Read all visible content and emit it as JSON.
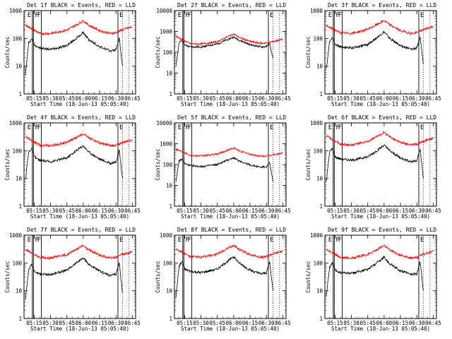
{
  "chart_data": [
    {
      "type": "line",
      "title": "Det 1f BLACK = Events, RED = LLD",
      "xlabel": "Start Time (18-Jun-13 05:05:40)",
      "ylabel": "Counts/sec",
      "y_scale": "log",
      "ylim": [
        1,
        1000
      ],
      "ytick_labels": [
        "1",
        "10",
        "100",
        "1000"
      ],
      "xtick_labels": [
        "05:15",
        "05:30",
        "05:45",
        "06:00",
        "06:15",
        "06:30",
        "06:45"
      ],
      "markers": [
        "E",
        "F",
        "F",
        "E"
      ],
      "series": [
        {
          "color": "#000000",
          "x": [
            "05:07",
            "05:10",
            "05:13",
            "05:15",
            "05:20",
            "05:30",
            "05:45",
            "05:55",
            "06:00",
            "06:05",
            "06:15",
            "06:25",
            "06:30",
            "06:33",
            "06:36"
          ],
          "values": [
            5,
            70,
            100,
            60,
            45,
            40,
            55,
            110,
            160,
            90,
            50,
            35,
            40,
            100,
            10
          ]
        },
        {
          "color": "#ff0000",
          "x": [
            "05:07",
            "05:15",
            "05:20",
            "05:30",
            "05:45",
            "05:55",
            "06:00",
            "06:05",
            "06:15",
            "06:25",
            "06:30",
            "06:35",
            "06:45"
          ],
          "values": [
            300,
            200,
            150,
            150,
            200,
            330,
            430,
            300,
            190,
            150,
            160,
            200,
            260
          ]
        }
      ]
    },
    {
      "type": "line",
      "title": "Det 2f BLACK = Events, RED = LLD",
      "xlabel": "Start Time (18-Jun-13 05:05:40)",
      "ylabel": "Counts/sec",
      "y_scale": "log",
      "ylim": [
        1,
        10000
      ],
      "ytick_labels": [
        "1",
        "10",
        "100",
        "1000",
        "10000"
      ],
      "xtick_labels": [
        "05:15",
        "05:30",
        "05:45",
        "06:00",
        "06:15",
        "06:30",
        "06:45"
      ],
      "markers": [
        "E",
        "F",
        "F",
        "E"
      ],
      "series": [
        {
          "color": "#000000",
          "x": [
            "05:07",
            "05:10",
            "05:13",
            "05:15",
            "05:20",
            "05:30",
            "05:45",
            "05:55",
            "06:00",
            "06:05",
            "06:15",
            "06:25",
            "06:30",
            "06:33",
            "06:36"
          ],
          "values": [
            20,
            300,
            380,
            220,
            180,
            180,
            250,
            420,
            530,
            380,
            230,
            180,
            190,
            250,
            50
          ]
        },
        {
          "color": "#ff0000",
          "x": [
            "05:07",
            "05:15",
            "05:20",
            "05:30",
            "05:45",
            "05:55",
            "06:00",
            "06:05",
            "06:15",
            "06:25",
            "06:30",
            "06:35",
            "06:45"
          ],
          "values": [
            600,
            350,
            260,
            250,
            320,
            580,
            750,
            520,
            330,
            270,
            280,
            320,
            420
          ]
        }
      ]
    },
    {
      "type": "line",
      "title": "Det 3f BLACK = Events, RED = LLD",
      "xlabel": "Start Time (18-Jun-13 05:05:40)",
      "ylabel": "Counts/sec",
      "y_scale": "log",
      "ylim": [
        1,
        1000
      ],
      "ytick_labels": [
        "1",
        "10",
        "100",
        "1000"
      ],
      "xtick_labels": [
        "05:15",
        "05:30",
        "05:45",
        "06:00",
        "06:15",
        "06:30",
        "06:45"
      ],
      "markers": [
        "E",
        "F",
        "F",
        "E"
      ],
      "series": [
        {
          "color": "#000000",
          "x": [
            "05:07",
            "05:10",
            "05:13",
            "05:15",
            "05:20",
            "05:30",
            "05:45",
            "05:55",
            "06:00",
            "06:05",
            "06:15",
            "06:25",
            "06:30",
            "06:33",
            "06:36"
          ],
          "values": [
            8,
            80,
            110,
            60,
            50,
            45,
            60,
            120,
            170,
            100,
            55,
            40,
            45,
            110,
            12
          ]
        },
        {
          "color": "#ff0000",
          "x": [
            "05:07",
            "05:15",
            "05:20",
            "05:30",
            "05:45",
            "05:55",
            "06:00",
            "06:05",
            "06:15",
            "06:25",
            "06:30",
            "06:35",
            "06:45"
          ],
          "values": [
            280,
            200,
            160,
            150,
            210,
            340,
            440,
            310,
            190,
            150,
            160,
            200,
            270
          ]
        }
      ]
    },
    {
      "type": "line",
      "title": "Det 4f BLACK = Events, RED = LLD",
      "xlabel": "Start Time (18-Jun-13 05:05:40)",
      "ylabel": "Counts/sec",
      "y_scale": "log",
      "ylim": [
        1,
        1000
      ],
      "ytick_labels": [
        "1",
        "10",
        "100",
        "1000"
      ],
      "xtick_labels": [
        "05:15",
        "05:30",
        "05:45",
        "06:00",
        "06:15",
        "06:30",
        "06:45"
      ],
      "markers": [
        "E",
        "F",
        "F",
        "E"
      ],
      "series": [
        {
          "color": "#000000",
          "x": [
            "05:07",
            "05:10",
            "05:13",
            "05:15",
            "05:20",
            "05:30",
            "05:45",
            "05:55",
            "06:00",
            "06:05",
            "06:15",
            "06:25",
            "06:30",
            "06:33",
            "06:36"
          ],
          "values": [
            10,
            90,
            120,
            60,
            45,
            40,
            55,
            110,
            150,
            90,
            50,
            35,
            40,
            100,
            10
          ]
        },
        {
          "color": "#ff0000",
          "x": [
            "05:07",
            "05:15",
            "05:20",
            "05:30",
            "05:45",
            "05:55",
            "06:00",
            "06:05",
            "06:15",
            "06:25",
            "06:30",
            "06:35",
            "06:45"
          ],
          "values": [
            320,
            210,
            160,
            150,
            200,
            320,
            420,
            300,
            190,
            150,
            160,
            190,
            250
          ]
        }
      ]
    },
    {
      "type": "line",
      "title": "Det 5f BLACK = Events, RED = LLD",
      "xlabel": "Start Time (18-Jun-13 05:05:40)",
      "ylabel": "Counts/sec",
      "y_scale": "log",
      "ylim": [
        1,
        10000
      ],
      "ytick_labels": [
        "1",
        "10",
        "100",
        "1000",
        "10000"
      ],
      "xtick_labels": [
        "05:15",
        "05:30",
        "05:45",
        "06:00",
        "06:15",
        "06:30",
        "06:45"
      ],
      "markers": [
        "E",
        "F",
        "F",
        "E"
      ],
      "series": [
        {
          "color": "#000000",
          "x": [
            "05:07",
            "05:10",
            "05:13",
            "05:15",
            "05:20",
            "05:30",
            "05:45",
            "05:55",
            "06:00",
            "06:05",
            "06:15",
            "06:25",
            "06:30",
            "06:33",
            "06:36"
          ],
          "values": [
            15,
            150,
            180,
            110,
            90,
            80,
            100,
            170,
            210,
            150,
            95,
            75,
            80,
            120,
            15
          ]
        },
        {
          "color": "#ff0000",
          "x": [
            "05:07",
            "05:15",
            "05:20",
            "05:30",
            "05:45",
            "05:55",
            "06:00",
            "06:05",
            "06:15",
            "06:25",
            "06:30",
            "06:35",
            "06:45"
          ],
          "values": [
            550,
            380,
            280,
            260,
            320,
            500,
            620,
            460,
            310,
            250,
            260,
            290,
            350
          ]
        }
      ]
    },
    {
      "type": "line",
      "title": "Det 6f BLACK = Events, RED = LLD",
      "xlabel": "Start Time (18-Jun-13 05:05:40)",
      "ylabel": "Counts/sec",
      "y_scale": "log",
      "ylim": [
        1,
        1000
      ],
      "ytick_labels": [
        "1",
        "10",
        "100",
        "1000"
      ],
      "xtick_labels": [
        "05:15",
        "05:30",
        "05:45",
        "06:00",
        "06:15",
        "06:30",
        "06:45"
      ],
      "markers": [
        "E",
        "F",
        "F",
        "E"
      ],
      "series": [
        {
          "color": "#000000",
          "x": [
            "05:07",
            "05:10",
            "05:13",
            "05:15",
            "05:20",
            "05:30",
            "05:45",
            "05:55",
            "06:00",
            "06:05",
            "06:15",
            "06:25",
            "06:30",
            "06:33",
            "06:36"
          ],
          "values": [
            8,
            90,
            120,
            60,
            50,
            45,
            60,
            110,
            160,
            100,
            55,
            40,
            45,
            110,
            10
          ]
        },
        {
          "color": "#ff0000",
          "x": [
            "05:07",
            "05:15",
            "05:20",
            "05:30",
            "05:45",
            "05:55",
            "06:00",
            "06:05",
            "06:15",
            "06:25",
            "06:30",
            "06:35",
            "06:45"
          ],
          "values": [
            350,
            220,
            170,
            160,
            210,
            350,
            460,
            320,
            200,
            160,
            170,
            210,
            280
          ]
        }
      ]
    },
    {
      "type": "line",
      "title": "Det 7f BLACK = Events, RED = LLD",
      "xlabel": "Start Time (18-Jun-13 05:05:40)",
      "ylabel": "Counts/sec",
      "y_scale": "log",
      "ylim": [
        1,
        1000
      ],
      "ytick_labels": [
        "1",
        "10",
        "100",
        "1000"
      ],
      "xtick_labels": [
        "05:15",
        "05:30",
        "05:45",
        "06:00",
        "06:15",
        "06:30",
        "06:45"
      ],
      "markers": [
        "E",
        "F",
        "F",
        "E"
      ],
      "series": [
        {
          "color": "#000000",
          "x": [
            "05:07",
            "05:10",
            "05:13",
            "05:15",
            "05:20",
            "05:30",
            "05:45",
            "05:55",
            "06:00",
            "06:05",
            "06:15",
            "06:25",
            "06:30",
            "06:33",
            "06:36"
          ],
          "values": [
            5,
            60,
            90,
            50,
            40,
            38,
            55,
            110,
            150,
            90,
            50,
            35,
            40,
            100,
            8
          ]
        },
        {
          "color": "#ff0000",
          "x": [
            "05:07",
            "05:15",
            "05:20",
            "05:30",
            "05:45",
            "05:55",
            "06:00",
            "06:05",
            "06:15",
            "06:25",
            "06:30",
            "06:35",
            "06:45"
          ],
          "values": [
            300,
            210,
            160,
            150,
            200,
            330,
            430,
            300,
            190,
            150,
            160,
            200,
            250
          ]
        }
      ]
    },
    {
      "type": "line",
      "title": "Det 8f BLACK = Events, RED = LLD",
      "xlabel": "Start Time (18-Jun-13 05:05:40)",
      "ylabel": "Counts/sec",
      "y_scale": "log",
      "ylim": [
        1,
        1000
      ],
      "ytick_labels": [
        "1",
        "10",
        "100",
        "1000"
      ],
      "xtick_labels": [
        "05:15",
        "05:30",
        "05:45",
        "06:00",
        "06:15",
        "06:30",
        "06:45"
      ],
      "markers": [
        "E",
        "F",
        "F",
        "E"
      ],
      "series": [
        {
          "color": "#000000",
          "x": [
            "05:07",
            "05:10",
            "05:13",
            "05:15",
            "05:20",
            "05:30",
            "05:45",
            "05:55",
            "06:00",
            "06:05",
            "06:15",
            "06:25",
            "06:30",
            "06:33",
            "06:36"
          ],
          "values": [
            6,
            80,
            110,
            60,
            50,
            45,
            60,
            120,
            170,
            100,
            55,
            40,
            45,
            110,
            10
          ]
        },
        {
          "color": "#ff0000",
          "x": [
            "05:07",
            "05:15",
            "05:20",
            "05:30",
            "05:45",
            "05:55",
            "06:00",
            "06:05",
            "06:15",
            "06:25",
            "06:30",
            "06:35",
            "06:45"
          ],
          "values": [
            330,
            220,
            170,
            160,
            210,
            340,
            440,
            310,
            200,
            160,
            170,
            210,
            270
          ]
        }
      ]
    },
    {
      "type": "line",
      "title": "Det 9f BLACK = Events, RED = LLD",
      "xlabel": "Start Time (18-Jun-13 05:05:40)",
      "ylabel": "Counts/sec",
      "y_scale": "log",
      "ylim": [
        1,
        1000
      ],
      "ytick_labels": [
        "1",
        "10",
        "100",
        "1000"
      ],
      "xtick_labels": [
        "05:15",
        "05:30",
        "05:45",
        "06:00",
        "06:15",
        "06:30",
        "06:45"
      ],
      "markers": [
        "E",
        "F",
        "F",
        "E"
      ],
      "series": [
        {
          "color": "#000000",
          "x": [
            "05:07",
            "05:10",
            "05:13",
            "05:15",
            "05:20",
            "05:30",
            "05:45",
            "05:55",
            "06:00",
            "06:05",
            "06:15",
            "06:25",
            "06:30",
            "06:33",
            "06:36"
          ],
          "values": [
            7,
            70,
            100,
            55,
            45,
            42,
            58,
            115,
            160,
            95,
            52,
            38,
            42,
            105,
            10
          ]
        },
        {
          "color": "#ff0000",
          "x": [
            "05:07",
            "05:15",
            "05:20",
            "05:30",
            "05:45",
            "05:55",
            "06:00",
            "06:05",
            "06:15",
            "06:25",
            "06:30",
            "06:35",
            "06:45"
          ],
          "values": [
            310,
            210,
            160,
            150,
            200,
            330,
            430,
            300,
            190,
            150,
            160,
            200,
            260
          ]
        }
      ]
    }
  ]
}
